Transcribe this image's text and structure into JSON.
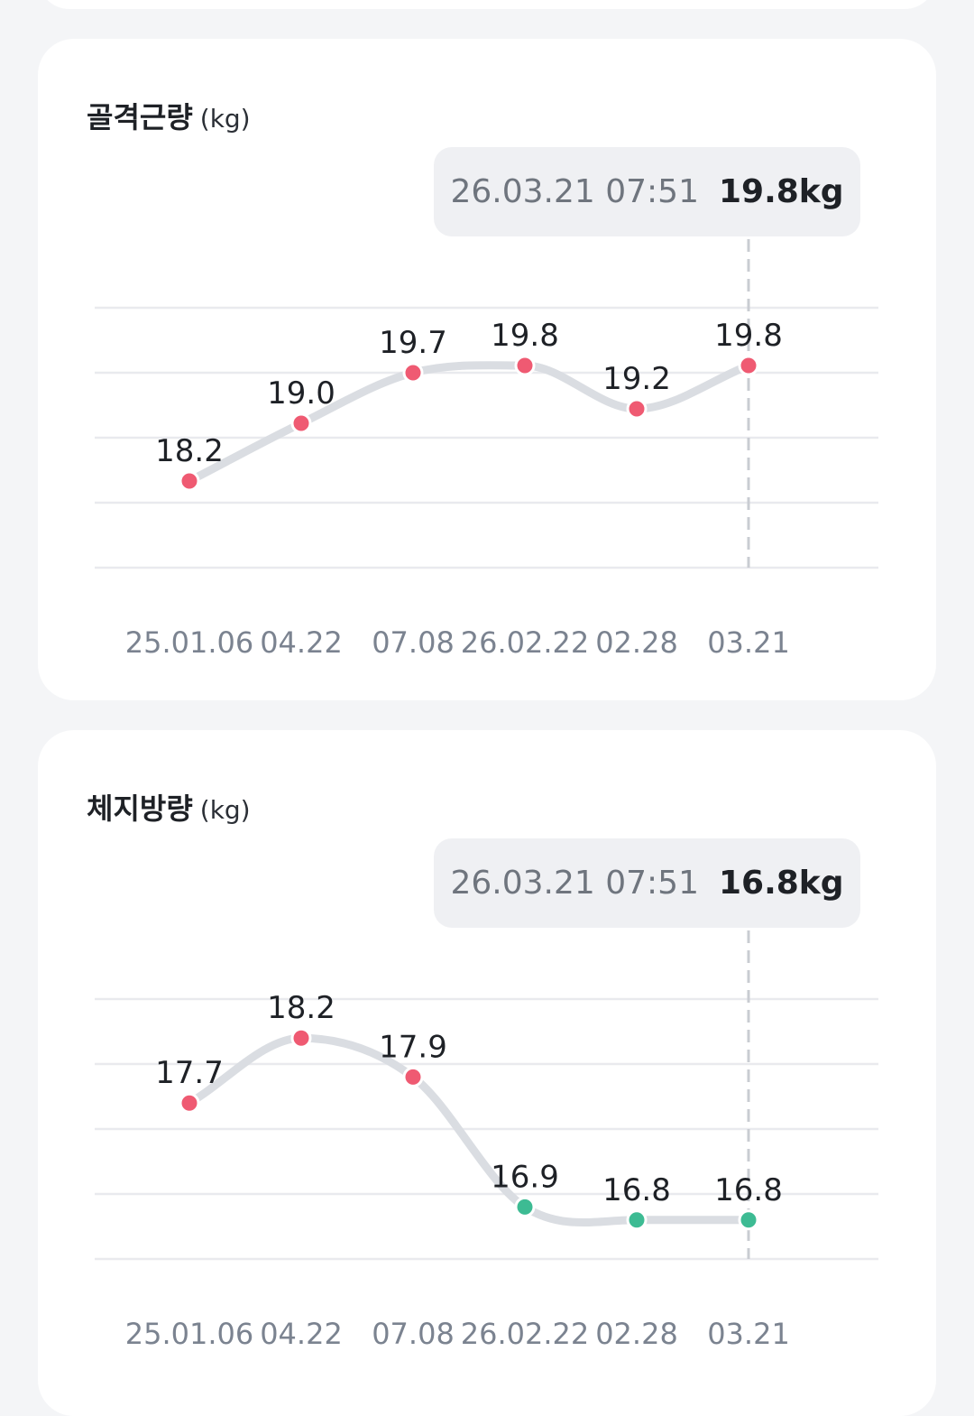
{
  "chart_data": [
    {
      "type": "line",
      "title": "골격근량",
      "unit": "(kg)",
      "categories": [
        "25.01.06",
        "04.22",
        "07.08",
        "26.02.22",
        "02.28",
        "03.21"
      ],
      "values": [
        18.2,
        19.0,
        19.7,
        19.8,
        19.2,
        19.8
      ],
      "value_labels": [
        "18.2",
        "19.0",
        "19.7",
        "19.8",
        "19.2",
        "19.8"
      ],
      "ylim": [
        17.0,
        20.6
      ],
      "grid": true,
      "selected_index": 5,
      "tooltip": {
        "date": "26.03.21 07:51",
        "value": "19.8kg"
      },
      "point_colors": [
        "#ef5a72",
        "#ef5a72",
        "#ef5a72",
        "#ef5a72",
        "#ef5a72",
        "#ef5a72"
      ]
    },
    {
      "type": "line",
      "title": "체지방량",
      "unit": "(kg)",
      "categories": [
        "25.01.06",
        "04.22",
        "07.08",
        "26.02.22",
        "02.28",
        "03.21"
      ],
      "values": [
        17.7,
        18.2,
        17.9,
        16.9,
        16.8,
        16.8
      ],
      "value_labels": [
        "17.7",
        "18.2",
        "17.9",
        "16.9",
        "16.8",
        "16.8"
      ],
      "ylim": [
        16.5,
        18.5
      ],
      "grid": true,
      "selected_index": 5,
      "tooltip": {
        "date": "26.03.21 07:51",
        "value": "16.8kg"
      },
      "point_colors": [
        "#ef5a72",
        "#ef5a72",
        "#ef5a72",
        "#3dbb93",
        "#3dbb93",
        "#3dbb93"
      ]
    }
  ]
}
